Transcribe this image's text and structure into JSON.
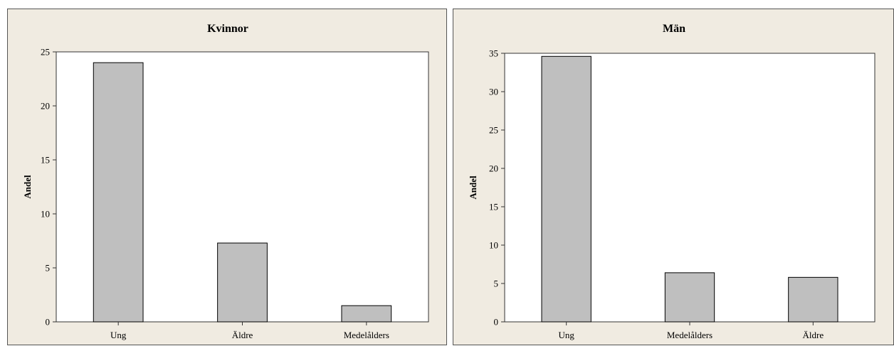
{
  "chart_data": [
    {
      "type": "bar",
      "title": "Kvinnor",
      "xlabel": "",
      "ylabel": "Andel",
      "categories": [
        "Ung",
        "Äldre",
        "Medelålders"
      ],
      "values": [
        24.0,
        7.3,
        1.5
      ],
      "ylim": [
        0,
        25
      ],
      "yticks": [
        0,
        5,
        10,
        15,
        20,
        25
      ],
      "bar_color": "#bfbfbf",
      "grid": false
    },
    {
      "type": "bar",
      "title": "Män",
      "xlabel": "",
      "ylabel": "Andel",
      "categories": [
        "Ung",
        "Medelålders",
        "Äldre"
      ],
      "values": [
        34.6,
        6.4,
        5.8
      ],
      "ylim": [
        0,
        35
      ],
      "yticks": [
        0,
        5,
        10,
        15,
        20,
        25,
        30,
        35
      ],
      "bar_color": "#bfbfbf",
      "grid": false
    }
  ]
}
